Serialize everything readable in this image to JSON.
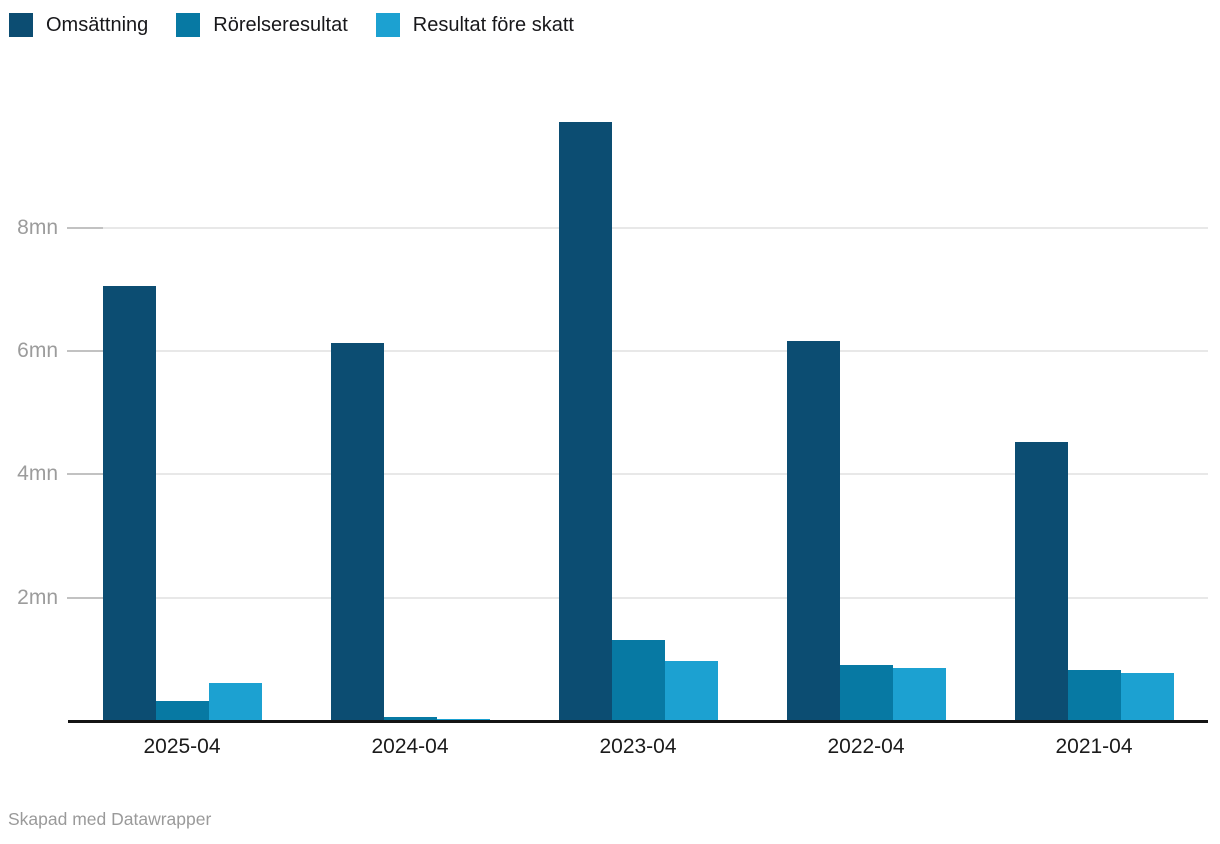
{
  "legend": {
    "items": [
      {
        "key": "omsattning",
        "label": "Omsättning",
        "color": "#0c4d72"
      },
      {
        "key": "rorelseresultat",
        "label": "Rörelseresultat",
        "color": "#0779a3"
      },
      {
        "key": "resultat-fore-skatt",
        "label": "Resultat före skatt",
        "color": "#1ca1d1"
      }
    ]
  },
  "footer": {
    "credit": "Skapad med Datawrapper"
  },
  "chart_data": {
    "type": "bar",
    "title": "",
    "categories": [
      "2025-04",
      "2024-04",
      "2023-04",
      "2022-04",
      "2021-04"
    ],
    "series": [
      {
        "key": "omsattning",
        "name": "Omsättning",
        "color": "#0c4d72",
        "values": [
          7.05,
          6.13,
          9.72,
          6.16,
          4.53
        ]
      },
      {
        "key": "rorelseresultat",
        "name": "Rörelseresultat",
        "color": "#0779a3",
        "values": [
          0.33,
          0.06,
          1.32,
          0.91,
          0.82
        ]
      },
      {
        "key": "resultat-fore-skatt",
        "name": "Resultat före skatt",
        "color": "#1ca1d1",
        "values": [
          0.62,
          0.03,
          0.97,
          0.86,
          0.78
        ]
      }
    ],
    "unit": "mn",
    "y_ticks": [
      2,
      4,
      6,
      8
    ],
    "y_tick_labels": [
      "2mn",
      "4mn",
      "6mn",
      "8mn"
    ],
    "ylim": [
      0,
      10
    ],
    "grid": true,
    "legend_position": "top-left",
    "colors": {
      "gridline": "#e8e8e8",
      "tick": "#c2c2c2",
      "axis": "#141414",
      "y_label": "#9c9c9c",
      "x_label": "#1b1b1b",
      "credit": "#9a9a9a"
    }
  }
}
